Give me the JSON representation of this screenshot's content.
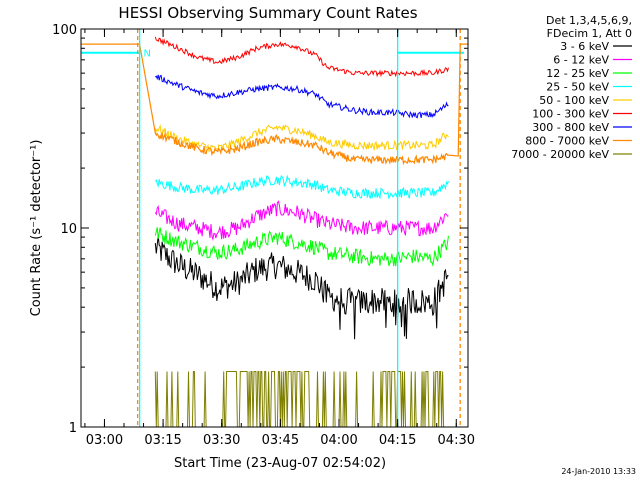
{
  "chart_data": {
    "type": "line",
    "title": "HESSI Observing Summary Count Rates",
    "xlabel": "Start Time (23-Aug-07 02:54:02)",
    "ylabel": "Count Rate (s⁻¹ detector⁻¹)",
    "x_unit": "minutes after 02:54:02 UT",
    "xlim": [
      0,
      99
    ],
    "ylim": [
      1,
      100
    ],
    "y_scale": "log",
    "x_ticks": [
      {
        "label": "03:00",
        "value": 6
      },
      {
        "label": "03:15",
        "value": 21
      },
      {
        "label": "03:30",
        "value": 36
      },
      {
        "label": "03:45",
        "value": 51
      },
      {
        "label": "04:00",
        "value": 66
      },
      {
        "label": "04:15",
        "value": 81
      },
      {
        "label": "04:30",
        "value": 96
      }
    ],
    "y_ticks": [
      {
        "label": "1",
        "value": 1
      },
      {
        "label": "10",
        "value": 10
      },
      {
        "label": "100",
        "value": 100
      }
    ],
    "legend": {
      "position": "top-right",
      "header": [
        "Det 1,3,4,5,6,9,",
        "FDecim 1, Att 0"
      ]
    },
    "series": [
      {
        "name": "3 - 6 keV",
        "color": "#000000",
        "x": [
          19,
          25,
          30,
          35,
          40,
          45,
          50,
          55,
          60,
          63,
          70,
          75,
          80,
          85,
          90,
          94
        ],
        "y": [
          8,
          6.5,
          5.8,
          5,
          5.3,
          6.2,
          6.5,
          6,
          5.5,
          4.5,
          4.2,
          4.3,
          4.2,
          4.3,
          4.2,
          5.8
        ]
      },
      {
        "name": "6 - 12 keV",
        "color": "#ff00ff",
        "x": [
          19,
          25,
          30,
          35,
          40,
          45,
          50,
          55,
          60,
          63,
          70,
          75,
          80,
          85,
          90,
          94
        ],
        "y": [
          12,
          10.5,
          10,
          9.5,
          10,
          11.5,
          12.5,
          12,
          11,
          10.5,
          10,
          10,
          10,
          10,
          10,
          12
        ]
      },
      {
        "name": "12 - 25 keV",
        "color": "#00ff00",
        "x": [
          19,
          25,
          30,
          35,
          40,
          45,
          50,
          55,
          60,
          63,
          70,
          75,
          80,
          85,
          90,
          94
        ],
        "y": [
          9.5,
          8.5,
          8,
          7.5,
          7.8,
          8.5,
          9,
          8.5,
          8,
          7.5,
          7.2,
          7,
          7,
          7.2,
          7,
          8.5
        ]
      },
      {
        "name": "25 - 50 keV",
        "color": "#00ffff",
        "x": [
          19,
          25,
          30,
          35,
          40,
          45,
          50,
          55,
          60,
          63,
          70,
          75,
          80,
          85,
          90,
          94
        ],
        "y": [
          17,
          16,
          15.5,
          15.5,
          16,
          17,
          17.5,
          17,
          16.5,
          15.5,
          15,
          15,
          15,
          15,
          15,
          17
        ]
      },
      {
        "name": "50 - 100 keV",
        "color": "#ffcc00",
        "x": [
          19,
          25,
          30,
          35,
          40,
          45,
          50,
          55,
          60,
          63,
          70,
          75,
          80,
          85,
          90,
          94
        ],
        "y": [
          32,
          28,
          26,
          25,
          27,
          30,
          32,
          31,
          29,
          27,
          26,
          26,
          26,
          26,
          26,
          30
        ]
      },
      {
        "name": "100 - 300 keV",
        "color": "#ff0000",
        "x": [
          19,
          25,
          30,
          35,
          40,
          45,
          50,
          55,
          60,
          63,
          70,
          75,
          80,
          85,
          90,
          94
        ],
        "y": [
          90,
          80,
          72,
          68,
          72,
          80,
          84,
          82,
          74,
          64,
          60,
          60,
          60,
          60,
          60,
          63
        ]
      },
      {
        "name": "300 - 800 keV",
        "color": "#0000ff",
        "x": [
          19,
          25,
          30,
          35,
          40,
          45,
          50,
          55,
          60,
          63,
          70,
          75,
          80,
          85,
          90,
          94
        ],
        "y": [
          58,
          52,
          48,
          46,
          48,
          50,
          51,
          50,
          47,
          42,
          39,
          38,
          38,
          37,
          37,
          42
        ]
      },
      {
        "name": "800 - 7000 keV",
        "color": "#ff8800",
        "x": [
          0,
          15,
          19,
          25,
          30,
          35,
          40,
          45,
          50,
          55,
          60,
          63,
          70,
          75,
          80,
          85,
          90,
          94,
          98
        ],
        "y": [
          84,
          84,
          30,
          27,
          25,
          24,
          25,
          27,
          28,
          27,
          26,
          24,
          22,
          22,
          22,
          22,
          22,
          23,
          84
        ]
      },
      {
        "name": "7000 - 20000 keV",
        "color": "#808000",
        "x": [
          19,
          21,
          30,
          35,
          40,
          45,
          50,
          55,
          60,
          63,
          70,
          75,
          80,
          85,
          90,
          94
        ],
        "y": [
          1.9,
          1,
          1,
          1,
          1.9,
          1.9,
          1.9,
          1.9,
          1,
          1,
          1,
          1,
          1.9,
          1,
          1.9,
          1
        ]
      }
    ],
    "annotations": {
      "cyan_level": {
        "color": "#00ffff",
        "y": 76,
        "segments": [
          [
            0,
            15
          ],
          [
            81,
            98
          ]
        ],
        "marker_label": "N",
        "marker_x": 16
      },
      "vertical_markers": [
        {
          "x": 14.5,
          "color": "#ff8800",
          "style": "dashed"
        },
        {
          "x": 15,
          "color": "#00ffff",
          "style": "solid"
        },
        {
          "x": 81,
          "color": "#00ffff",
          "style": "solid"
        },
        {
          "x": 97,
          "color": "#ff8800",
          "style": "dashed"
        }
      ]
    }
  },
  "footer": {
    "timestamp": "24-Jan-2010 13:33"
  }
}
